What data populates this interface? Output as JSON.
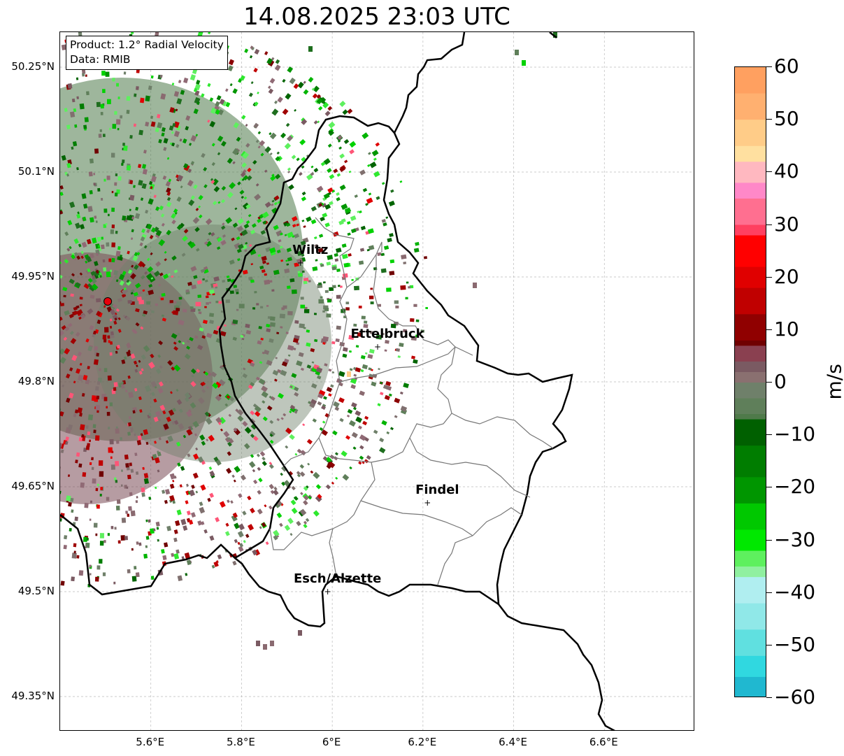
{
  "title": "14.08.2025 23:03 UTC",
  "info": {
    "product": "Product: 1.2° Radial Velocity",
    "data": "Data: RMIB"
  },
  "lat_labels": [
    "50.25°N",
    "50.1°N",
    "49.95°N",
    "49.8°N",
    "49.65°N",
    "49.5°N",
    "49.35°N"
  ],
  "lon_labels": [
    "5.6°E",
    "5.8°E",
    "6°E",
    "6.2°E",
    "6.4°E",
    "6.6°E"
  ],
  "map_extent": {
    "lon_min": 5.4,
    "lon_max": 6.8,
    "lat_min": 49.3,
    "lat_max": 50.3
  },
  "cities": [
    {
      "name": "Wiltz",
      "lon": 5.93,
      "lat": 49.97
    },
    {
      "name": "Ettelbruck",
      "lon": 6.1,
      "lat": 49.85
    },
    {
      "name": "Findel",
      "lon": 6.21,
      "lat": 49.627
    },
    {
      "name": "Esch/Alzette",
      "lon": 5.99,
      "lat": 49.5
    }
  ],
  "radar_site": {
    "lon": 5.505,
    "lat": 49.915,
    "color": "#e8000b"
  },
  "colorbar": {
    "label": "m/s",
    "min": -60,
    "max": 60,
    "ticks": [
      "60",
      "50",
      "40",
      "30",
      "20",
      "10",
      "0",
      "−10",
      "−20",
      "−30",
      "−40",
      "−50",
      "−60"
    ]
  },
  "colors": {
    "strong_outbound": "#e8000b",
    "weak_outbound": "#8a5a60",
    "neutral": "#6f7f6a",
    "weak_inbound": "#2e7a33",
    "strong_inbound": "#00c800"
  }
}
